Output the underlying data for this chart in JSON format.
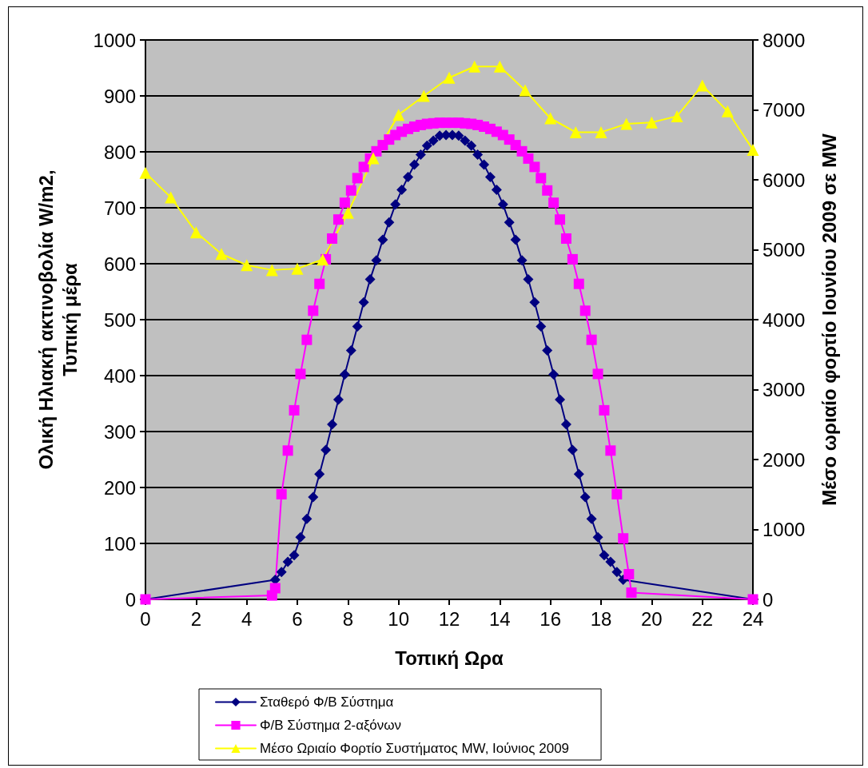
{
  "chart_data": {
    "type": "line",
    "xlabel": "Τοπική Ωρα",
    "ylabel": "Ολική Ηλιακή ακτινοβολία W/m2,\nΤυπική μέρα",
    "y2label": "Μέσο ωριαίο φορτίο Ιουνίου 2009 σε MW",
    "xlim": [
      0,
      24
    ],
    "xticks": [
      0,
      2,
      4,
      6,
      8,
      10,
      12,
      14,
      16,
      18,
      20,
      22,
      24
    ],
    "ylim": [
      0,
      1000
    ],
    "yticks": [
      0,
      100,
      200,
      300,
      400,
      500,
      600,
      700,
      800,
      900,
      1000
    ],
    "y2lim": [
      0,
      8000
    ],
    "y2ticks": [
      0,
      1000,
      2000,
      3000,
      4000,
      5000,
      6000,
      7000,
      8000
    ],
    "grid": "y",
    "legend": "bottom",
    "line_style": "solid",
    "series": [
      {
        "name": "Σταθερό Φ/Β Σύστημα",
        "color": "#000080",
        "marker": "diamond",
        "x": [
          0,
          5.125,
          5.375,
          5.625,
          5.875,
          6.125,
          6.375,
          6.625,
          6.875,
          7.125,
          7.375,
          7.625,
          7.875,
          8.125,
          8.375,
          8.625,
          8.875,
          9.125,
          9.375,
          9.625,
          9.875,
          10.125,
          10.375,
          10.625,
          10.875,
          11.125,
          11.375,
          11.625,
          11.875,
          12.125,
          12.375,
          12.625,
          12.875,
          13.125,
          13.375,
          13.625,
          13.875,
          14.125,
          14.375,
          14.625,
          14.875,
          15.125,
          15.375,
          15.625,
          15.875,
          16.125,
          16.375,
          16.625,
          16.875,
          17.125,
          17.375,
          17.625,
          17.875,
          18.125,
          18.375,
          18.625,
          18.875,
          24
        ],
        "values": [
          0,
          35,
          49,
          67,
          79,
          111,
          144,
          183,
          224,
          267,
          313,
          357,
          402,
          445,
          488,
          531,
          572,
          606,
          643,
          674,
          706,
          732,
          755,
          777,
          795,
          811,
          820,
          829,
          830,
          830,
          829,
          820,
          811,
          795,
          777,
          755,
          732,
          706,
          674,
          643,
          606,
          572,
          531,
          488,
          445,
          402,
          357,
          313,
          267,
          224,
          183,
          144,
          111,
          79,
          67,
          49,
          35,
          0
        ]
      },
      {
        "name": "Φ/Β Σύστημα 2-αξόνων",
        "color": "#ff00ff",
        "marker": "square",
        "x": [
          0,
          5.0,
          5.125,
          5.375,
          5.625,
          5.875,
          6.125,
          6.375,
          6.625,
          6.875,
          7.125,
          7.375,
          7.625,
          7.875,
          8.125,
          8.375,
          8.625,
          8.875,
          9.125,
          9.375,
          9.625,
          9.875,
          10.125,
          10.375,
          10.625,
          10.875,
          11.125,
          11.375,
          11.625,
          11.875,
          12.125,
          12.375,
          12.625,
          12.875,
          13.125,
          13.375,
          13.625,
          13.875,
          14.125,
          14.375,
          14.625,
          14.875,
          15.125,
          15.375,
          15.625,
          15.875,
          16.125,
          16.375,
          16.625,
          16.875,
          17.125,
          17.375,
          17.625,
          17.875,
          18.125,
          18.375,
          18.625,
          18.875,
          19.1,
          19.2,
          24
        ],
        "values": [
          0,
          7,
          20,
          188,
          266,
          338,
          403,
          464,
          516,
          564,
          608,
          645,
          679,
          709,
          731,
          753,
          773,
          788,
          801,
          812,
          822,
          830,
          836,
          841,
          845,
          848,
          850,
          851,
          852,
          852,
          852,
          852,
          851,
          850,
          848,
          845,
          841,
          836,
          830,
          822,
          812,
          801,
          788,
          773,
          753,
          731,
          709,
          679,
          645,
          608,
          564,
          516,
          464,
          403,
          338,
          266,
          188,
          109,
          45,
          12,
          0
        ]
      },
      {
        "name": "Μέσο Ωριαίο Φορτίο Συστήματος MW, Ιούνιος 2009",
        "color": "#ffff00",
        "marker": "triangle",
        "axis": "y2",
        "x": [
          0,
          1,
          2,
          3,
          4,
          5,
          6,
          7,
          8,
          9,
          10,
          11,
          12,
          13,
          14,
          15,
          16,
          17,
          18,
          19,
          20,
          21,
          22,
          23,
          24
        ],
        "values": [
          6100,
          5750,
          5250,
          4940,
          4780,
          4710,
          4730,
          4860,
          5530,
          6310,
          6930,
          7200,
          7460,
          7620,
          7620,
          7280,
          6880,
          6680,
          6680,
          6800,
          6820,
          6910,
          7350,
          6980,
          6430
        ]
      }
    ]
  }
}
